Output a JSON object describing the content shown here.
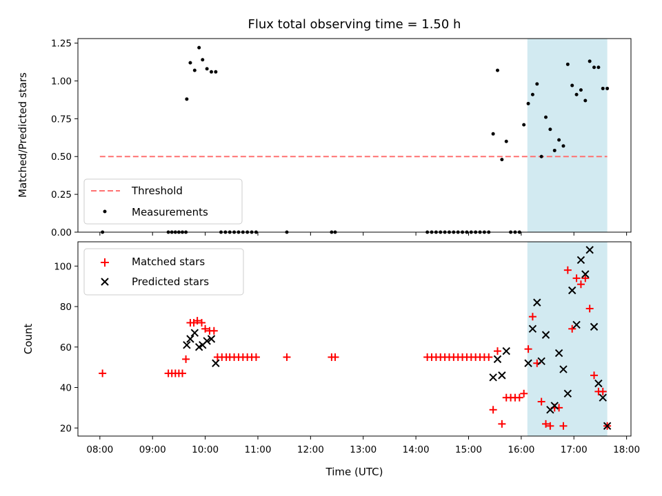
{
  "chart_data": [
    {
      "type": "scatter",
      "title": "Flux total observing time = 1.50 h",
      "xlabel": "",
      "ylabel": "Matched/Predicted stars",
      "ylim": [
        0,
        1.28
      ],
      "yticks": [
        0.0,
        0.25,
        0.5,
        0.75,
        1.0,
        1.25
      ],
      "ytick_labels": [
        "0.00",
        "0.25",
        "0.50",
        "0.75",
        "1.00",
        "1.25"
      ],
      "xlim": [
        "07:35",
        "18:05"
      ],
      "highlight_span": [
        "16:07",
        "17:38"
      ],
      "highlight_color": "#add8e6",
      "threshold": {
        "name": "Threshold",
        "value": 0.5,
        "x": [
          "08:00",
          "17:38"
        ],
        "color": "#ff7070",
        "style": "dashed"
      },
      "series": [
        {
          "name": "Measurements",
          "marker": "dot",
          "color": "#000000",
          "x": [
            "08:03",
            "09:18",
            "09:22",
            "09:26",
            "09:30",
            "09:34",
            "09:38",
            "09:39",
            "09:43",
            "09:48",
            "09:53",
            "09:57",
            "10:02",
            "10:07",
            "10:12",
            "10:18",
            "10:23",
            "10:28",
            "10:33",
            "10:38",
            "10:43",
            "10:48",
            "10:53",
            "10:58",
            "11:33",
            "12:24",
            "12:28",
            "14:13",
            "14:18",
            "14:23",
            "14:28",
            "14:33",
            "14:38",
            "14:43",
            "14:48",
            "14:53",
            "14:58",
            "15:03",
            "15:08",
            "15:13",
            "15:18",
            "15:23",
            "15:28",
            "15:33",
            "15:38",
            "15:43",
            "15:48",
            "15:53",
            "15:58",
            "16:03",
            "16:08",
            "16:13",
            "16:18",
            "16:23",
            "16:28",
            "16:33",
            "16:38",
            "16:43",
            "16:48",
            "16:53",
            "16:58",
            "17:03",
            "17:08",
            "17:13",
            "17:18",
            "17:23",
            "17:28",
            "17:33",
            "17:38"
          ],
          "values": [
            0.0,
            0.0,
            0.0,
            0.0,
            0.0,
            0.0,
            0.0,
            0.88,
            1.12,
            1.07,
            1.22,
            1.14,
            1.08,
            1.06,
            1.06,
            0.0,
            0.0,
            0.0,
            0.0,
            0.0,
            0.0,
            0.0,
            0.0,
            0.0,
            0.0,
            0.0,
            0.0,
            0.0,
            0.0,
            0.0,
            0.0,
            0.0,
            0.0,
            0.0,
            0.0,
            0.0,
            0.0,
            0.0,
            0.0,
            0.0,
            0.0,
            0.0,
            0.65,
            1.07,
            0.48,
            0.6,
            0.0,
            0.0,
            0.0,
            0.71,
            0.85,
            0.91,
            0.98,
            0.5,
            0.76,
            0.68,
            0.54,
            0.61,
            0.57,
            1.11,
            0.97,
            0.91,
            0.94,
            0.87,
            1.13,
            1.09,
            1.09,
            0.95,
            0.95
          ]
        }
      ],
      "legend": {
        "position": "lower-left",
        "entries": [
          "Threshold",
          "Measurements"
        ]
      }
    },
    {
      "type": "scatter",
      "title": "",
      "xlabel": "Time (UTC)",
      "ylabel": "Count",
      "ylim": [
        16,
        112
      ],
      "yticks": [
        20,
        40,
        60,
        80,
        100
      ],
      "ytick_labels": [
        "20",
        "40",
        "60",
        "80",
        "100"
      ],
      "xlim": [
        "07:35",
        "18:05"
      ],
      "xticks": [
        "08:00",
        "09:00",
        "10:00",
        "11:00",
        "12:00",
        "13:00",
        "14:00",
        "15:00",
        "16:00",
        "17:00",
        "18:00"
      ],
      "xtick_labels": [
        "08:00",
        "09:00",
        "10:00",
        "11:00",
        "12:00",
        "13:00",
        "14:00",
        "15:00",
        "16:00",
        "17:00",
        "18:00"
      ],
      "highlight_span": [
        "16:07",
        "17:38"
      ],
      "highlight_color": "#add8e6",
      "series": [
        {
          "name": "Matched stars",
          "marker": "plus",
          "color": "#ff0000",
          "x": [
            "08:03",
            "09:18",
            "09:22",
            "09:26",
            "09:30",
            "09:34",
            "09:38",
            "09:43",
            "09:47",
            "09:51",
            "09:56",
            "10:00",
            "10:05",
            "10:10",
            "10:14",
            "10:19",
            "10:24",
            "10:28",
            "10:33",
            "10:38",
            "10:43",
            "10:48",
            "10:53",
            "10:58",
            "11:33",
            "12:24",
            "12:28",
            "14:13",
            "14:18",
            "14:23",
            "14:28",
            "14:33",
            "14:38",
            "14:43",
            "14:48",
            "14:53",
            "14:58",
            "15:03",
            "15:08",
            "15:13",
            "15:18",
            "15:23",
            "15:28",
            "15:33",
            "15:38",
            "15:43",
            "15:48",
            "15:53",
            "15:58",
            "16:03",
            "16:08",
            "16:13",
            "16:18",
            "16:23",
            "16:28",
            "16:33",
            "16:38",
            "16:43",
            "16:48",
            "16:53",
            "16:58",
            "17:03",
            "17:08",
            "17:13",
            "17:18",
            "17:23",
            "17:28",
            "17:33",
            "17:38"
          ],
          "values": [
            47,
            47,
            47,
            47,
            47,
            47,
            54,
            72,
            72,
            73,
            72,
            69,
            68,
            68,
            55,
            55,
            55,
            55,
            55,
            55,
            55,
            55,
            55,
            55,
            55,
            55,
            55,
            55,
            55,
            55,
            55,
            55,
            55,
            55,
            55,
            55,
            55,
            55,
            55,
            55,
            55,
            55,
            29,
            58,
            22,
            35,
            35,
            35,
            35,
            37,
            59,
            75,
            52,
            33,
            22,
            21,
            30,
            30,
            21,
            98,
            69,
            94,
            91,
            94,
            79,
            46,
            38,
            38,
            21
          ]
        },
        {
          "name": "Predicted stars",
          "marker": "x",
          "color": "#000000",
          "x": [
            "09:39",
            "09:43",
            "09:48",
            "09:53",
            "09:57",
            "10:02",
            "10:07",
            "10:12",
            "15:28",
            "15:33",
            "15:38",
            "15:43",
            "16:08",
            "16:13",
            "16:18",
            "16:23",
            "16:28",
            "16:33",
            "16:38",
            "16:43",
            "16:48",
            "16:53",
            "16:58",
            "17:03",
            "17:08",
            "17:13",
            "17:18",
            "17:23",
            "17:28",
            "17:33",
            "17:38"
          ],
          "values": [
            61,
            64,
            67,
            60,
            61,
            63,
            64,
            52,
            45,
            54,
            46,
            58,
            52,
            69,
            82,
            53,
            66,
            29,
            31,
            57,
            49,
            37,
            88,
            71,
            103,
            96,
            108,
            70,
            42,
            35,
            21
          ]
        }
      ],
      "legend": {
        "position": "upper-left",
        "entries": [
          "Matched stars",
          "Predicted stars"
        ]
      }
    }
  ]
}
